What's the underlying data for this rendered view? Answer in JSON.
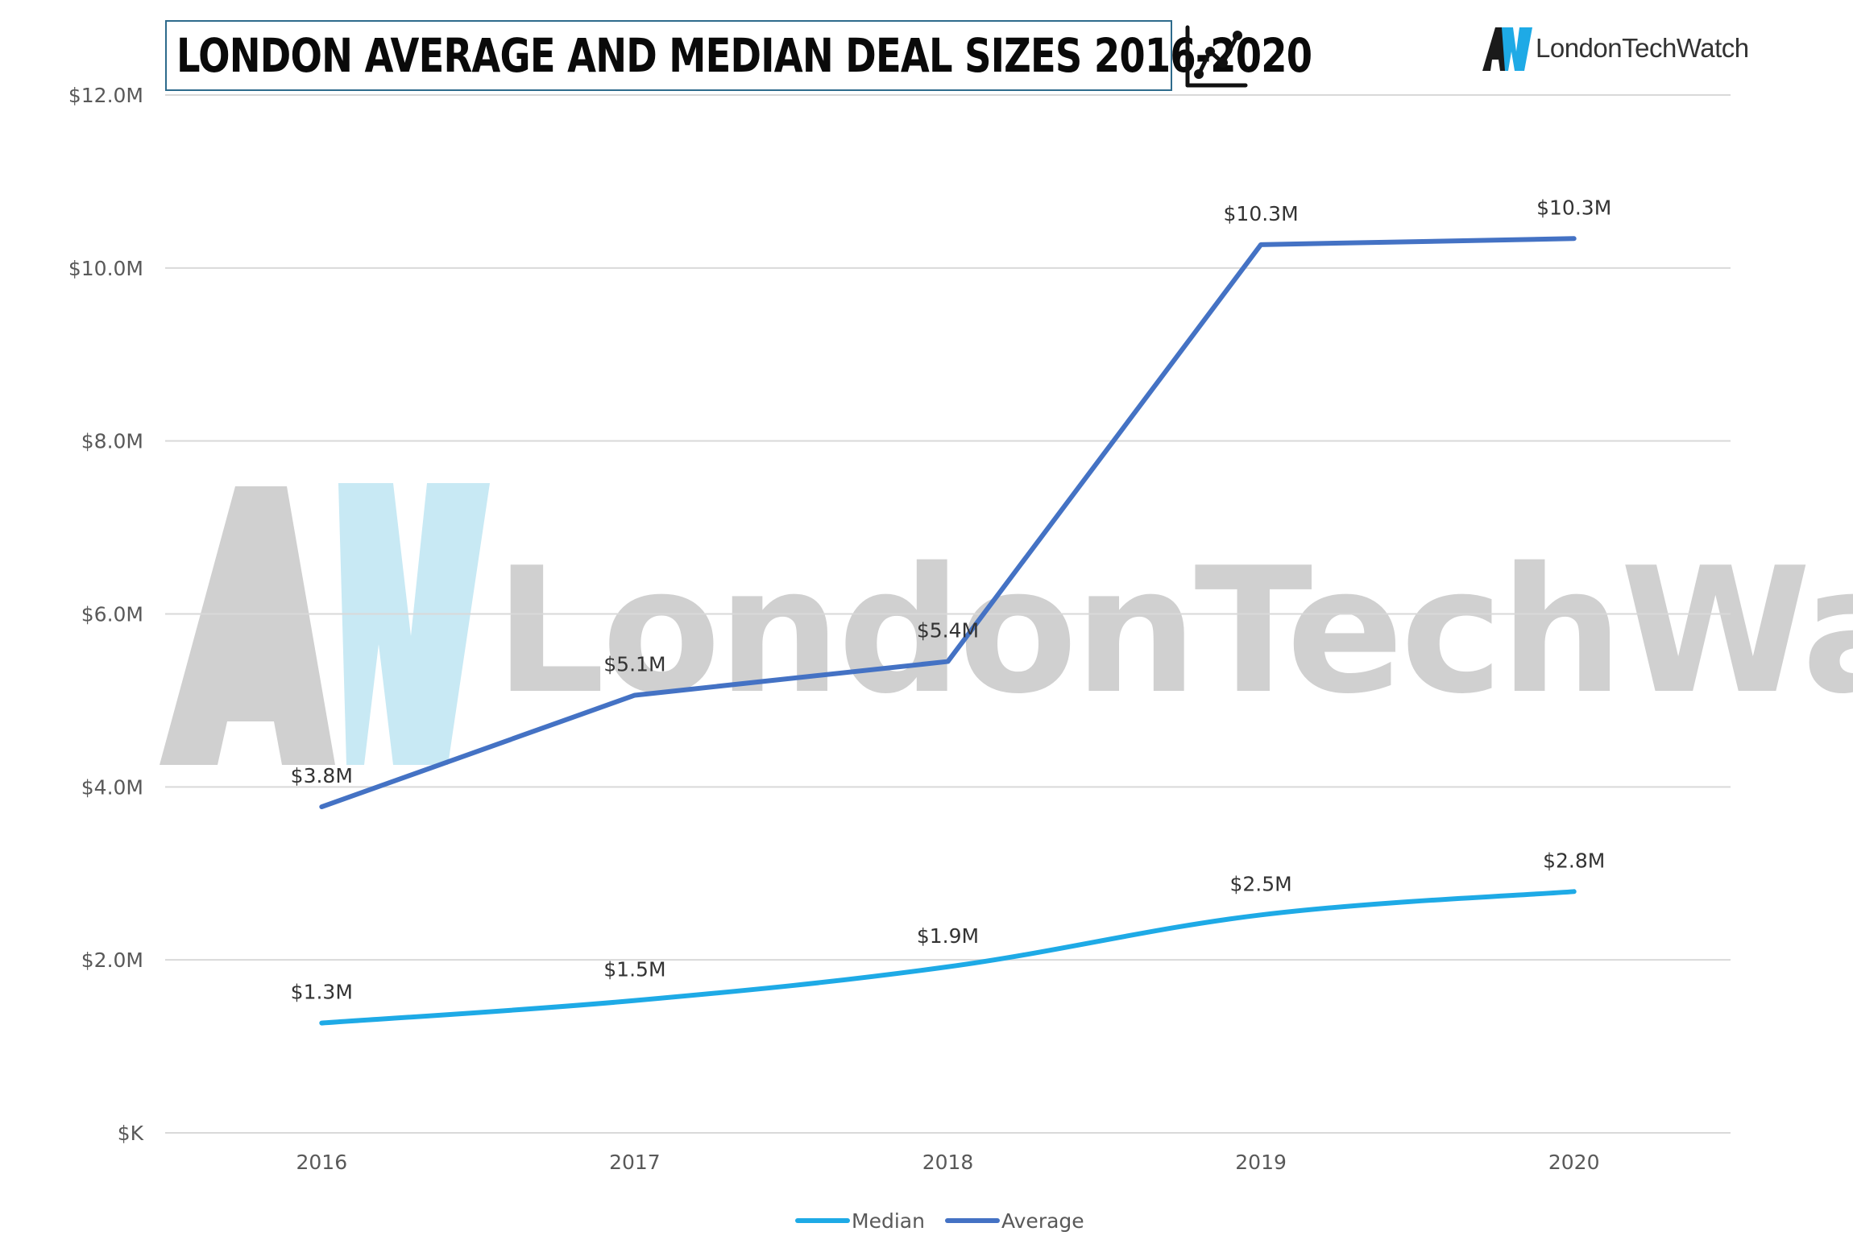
{
  "header": {
    "title": "LONDON AVERAGE AND MEDIAN DEAL SIZES 2016-2020",
    "title_icon": "line-chart-icon"
  },
  "brand": {
    "name": "LondonTechWatch",
    "mark_icon": "aw-logo-icon",
    "watermark_text": "LondonTechWatch"
  },
  "colors": {
    "median": "#1eaae6",
    "average": "#4472c4",
    "grid": "#d9d9d9",
    "axis_text": "#595959",
    "label_text": "#333333",
    "watermark_gray": "#d0d0d0",
    "watermark_blue": "#c8e9f4"
  },
  "chart_data": {
    "type": "line",
    "title": "LONDON AVERAGE AND MEDIAN DEAL SIZES 2016-2020",
    "xlabel": "",
    "ylabel": "",
    "categories": [
      "2016",
      "2017",
      "2018",
      "2019",
      "2020"
    ],
    "ylim": [
      0,
      12
    ],
    "y_ticks": [
      0,
      2,
      4,
      6,
      8,
      10,
      12
    ],
    "y_tick_labels": [
      "$K",
      "$2.0M",
      "$4.0M",
      "$6.0M",
      "$8.0M",
      "$10.0M",
      "$12.0M"
    ],
    "grid": true,
    "legend_position": "bottom",
    "series": [
      {
        "name": "Median",
        "values": [
          1.27,
          1.53,
          1.92,
          2.52,
          2.79
        ],
        "data_labels": [
          "$1.3M",
          "$1.5M",
          "$1.9M",
          "$2.5M",
          "$2.8M"
        ],
        "color": "#1eaae6",
        "smooth": true
      },
      {
        "name": "Average",
        "values": [
          3.77,
          5.06,
          5.45,
          10.27,
          10.34
        ],
        "data_labels": [
          "$3.8M",
          "$5.1M",
          "$5.4M",
          "$10.3M",
          "$10.3M"
        ],
        "color": "#4472c4",
        "smooth": false
      }
    ]
  }
}
